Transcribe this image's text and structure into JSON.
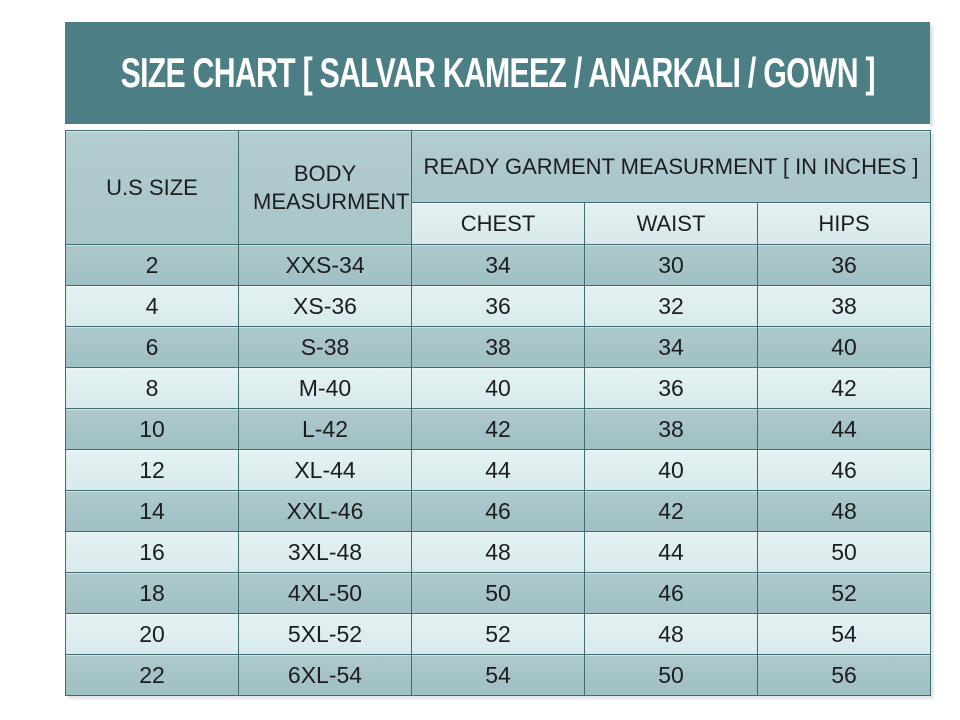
{
  "title": "SIZE CHART [ SALVAR KAMEEZ / ANARKALI / GOWN ]",
  "colors": {
    "band_teal": "#4b7f85",
    "header_bg": "#a8c5c9",
    "subheader_bg": "#d9eaec",
    "row_dark": "#9fc0c4",
    "row_light": "#d8eaec",
    "border": "#3e6d72",
    "title_text": "#ffffff",
    "cell_text": "#1d1d1d"
  },
  "chart_data": {
    "type": "table",
    "title": "SIZE CHART [ SALVAR KAMEEZ / ANARKALI / GOWN ]",
    "header": {
      "us_size": "U.S SIZE",
      "body_measurement": "BODY MEASURMENT",
      "ready_garment": "READY GARMENT MEASURMENT [ IN INCHES ]",
      "sub_columns": [
        "CHEST",
        "WAIST",
        "HIPS"
      ]
    },
    "columns": [
      "U.S SIZE",
      "BODY MEASURMENT",
      "CHEST",
      "WAIST",
      "HIPS"
    ],
    "rows": [
      [
        "2",
        "XXS-34",
        "34",
        "30",
        "36"
      ],
      [
        "4",
        "XS-36",
        "36",
        "32",
        "38"
      ],
      [
        "6",
        "S-38",
        "38",
        "34",
        "40"
      ],
      [
        "8",
        "M-40",
        "40",
        "36",
        "42"
      ],
      [
        "10",
        "L-42",
        "42",
        "38",
        "44"
      ],
      [
        "12",
        "XL-44",
        "44",
        "40",
        "46"
      ],
      [
        "14",
        "XXL-46",
        "46",
        "42",
        "48"
      ],
      [
        "16",
        "3XL-48",
        "48",
        "44",
        "50"
      ],
      [
        "18",
        "4XL-50",
        "50",
        "46",
        "52"
      ],
      [
        "20",
        "5XL-52",
        "52",
        "48",
        "54"
      ],
      [
        "22",
        "6XL-54",
        "54",
        "50",
        "56"
      ]
    ]
  }
}
